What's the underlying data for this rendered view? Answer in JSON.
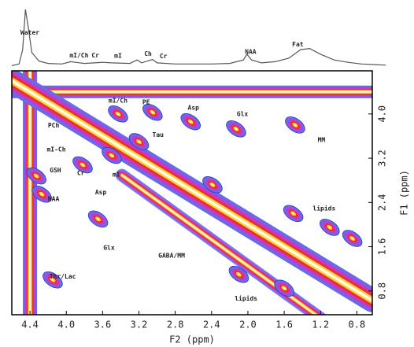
{
  "chart_data": {
    "type": "contour",
    "x_label": "F2 (ppm)",
    "y_label": "F1 (ppm)",
    "xlim": [
      4.6,
      0.63
    ],
    "ylim": [
      4.78,
      0.37
    ],
    "xticks": [
      4.4,
      {
        "value": 4,
        "label": "4.0"
      },
      3.6,
      3.2,
      2.8,
      2.4,
      {
        "value": 2,
        "label": "2.0"
      },
      1.6,
      1.2,
      0.8
    ],
    "yticks": [
      {
        "value": 4,
        "label": "4.0"
      },
      3.2,
      2.4,
      1.6,
      0.8
    ],
    "spectrum": {
      "color": "#555555",
      "x": [
        4.6,
        4.52,
        4.48,
        4.45,
        4.42,
        4.38,
        4.3,
        4.2,
        4.05,
        3.95,
        3.9,
        3.8,
        3.6,
        3.5,
        3.3,
        3.22,
        3.17,
        3.05,
        3.0,
        2.8,
        2.6,
        2.4,
        2.2,
        2.05,
        2.01,
        1.96,
        1.85,
        1.7,
        1.55,
        1.42,
        1.32,
        1.2,
        1.05,
        0.9,
        0.75,
        0.6,
        0.48
      ],
      "values": [
        2,
        5,
        30,
        100,
        70,
        25,
        10,
        6,
        5,
        9,
        8,
        6,
        8,
        7,
        6,
        12,
        7,
        13,
        7,
        5,
        5,
        5,
        6,
        12,
        22,
        12,
        7,
        9,
        15,
        30,
        32,
        22,
        12,
        8,
        5,
        4,
        3
      ]
    },
    "spectrum_labels": [
      {
        "text": "Water",
        "x": 4.4
      },
      {
        "text": "mI/Ch",
        "x": 3.86
      },
      {
        "text": "Cr",
        "x": 3.68
      },
      {
        "text": "mI",
        "x": 3.43
      },
      {
        "text": "Ch",
        "x": 3.1
      },
      {
        "text": "Cr",
        "x": 2.93
      },
      {
        "text": "NAA",
        "x": 1.97
      },
      {
        "text": "Fat",
        "x": 1.45
      }
    ],
    "peaks": {
      "x": [
        4.27,
        4.33,
        3.65,
        3.43,
        3.05,
        2.63,
        2.13,
        1.48,
        3.82,
        3.5,
        3.2,
        1.5,
        1.1,
        0.85,
        2.1,
        1.6,
        4.15,
        2.39
      ],
      "y": [
        2.55,
        2.88,
        2.1,
        4.0,
        4.03,
        3.86,
        3.73,
        3.8,
        3.08,
        3.25,
        3.5,
        2.2,
        1.95,
        1.75,
        1.1,
        0.85,
        1.0,
        2.72
      ]
    },
    "annotations": [
      {
        "text": "mI/Ch",
        "x": 3.43,
        "y": 4.24
      },
      {
        "text": "PE",
        "x": 3.12,
        "y": 4.21
      },
      {
        "text": "Asp",
        "x": 2.6,
        "y": 4.11
      },
      {
        "text": "Glx",
        "x": 2.06,
        "y": 4.0
      },
      {
        "text": "MM",
        "x": 1.19,
        "y": 3.53
      },
      {
        "text": "PCh",
        "x": 4.14,
        "y": 3.79
      },
      {
        "text": "mI-Ch",
        "x": 4.11,
        "y": 3.36
      },
      {
        "text": "GSH",
        "x": 4.12,
        "y": 2.98
      },
      {
        "text": "Cr",
        "x": 3.84,
        "y": 2.93
      },
      {
        "text": "Tau",
        "x": 2.99,
        "y": 3.62
      },
      {
        "text": "mI",
        "x": 3.45,
        "y": 2.9
      },
      {
        "text": "Asp",
        "x": 3.62,
        "y": 2.58
      },
      {
        "text": "NAA",
        "x": 4.14,
        "y": 2.46
      },
      {
        "text": "Glx",
        "x": 3.53,
        "y": 1.58
      },
      {
        "text": "GABA/MM",
        "x": 2.84,
        "y": 1.44
      },
      {
        "text": "lipids",
        "x": 1.16,
        "y": 2.29
      },
      {
        "text": "lipids",
        "x": 2.02,
        "y": 0.66
      },
      {
        "text": "Thr/Lac",
        "x": 4.04,
        "y": 1.06
      }
    ]
  }
}
